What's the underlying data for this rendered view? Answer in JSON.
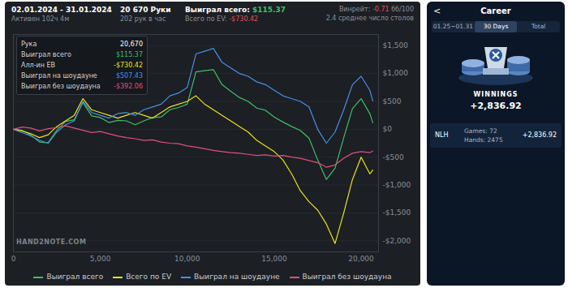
{
  "header": {
    "period": "02.01.2024 - 31.01.2024",
    "active": "Активен 102ч 4м",
    "hands": "20 670 Руки",
    "rate": "202 рук в час",
    "won_label": "Выиграл всего:",
    "won_value": "$115.37",
    "ev_label": "Всего по EV:",
    "ev_value": "-$730.42",
    "winrate_label": "Винрейт:",
    "winrate_value": "-0.71",
    "winrate_unit": "бб/100",
    "tables": "2.4 среднее число столов"
  },
  "tooltip": {
    "rows": [
      [
        "Рука",
        "20,670"
      ],
      [
        "Выиграл всего",
        "$115.37"
      ],
      [
        "Алл-ин EВ",
        "-$730.42"
      ],
      [
        "Выиграл на шоудауне",
        "$507.43"
      ],
      [
        "Выиграл без шоудауна",
        "-$392.06"
      ]
    ]
  },
  "watermark": "HAND2NOTE.COM",
  "chart_data": {
    "type": "line",
    "x": [
      0,
      500,
      1000,
      1500,
      2000,
      2500,
      3000,
      3500,
      4000,
      4500,
      5000,
      5500,
      6000,
      6500,
      7000,
      7500,
      8000,
      8500,
      9000,
      9500,
      10000,
      10500,
      11000,
      11500,
      12000,
      12500,
      13000,
      13500,
      14000,
      14500,
      15000,
      15500,
      16000,
      16500,
      17000,
      17500,
      18000,
      18500,
      19000,
      19500,
      20000,
      20500,
      20670
    ],
    "series": [
      {
        "name": "Выиграл всего",
        "color": "#3fbf6a",
        "values": [
          0,
          -20,
          -100,
          -230,
          -240,
          -20,
          140,
          170,
          480,
          240,
          210,
          120,
          160,
          150,
          80,
          150,
          210,
          220,
          350,
          390,
          450,
          1030,
          1050,
          1070,
          800,
          680,
          570,
          500,
          380,
          340,
          220,
          130,
          50,
          -20,
          -160,
          -550,
          -900,
          -700,
          -150,
          370,
          550,
          280,
          115.37
        ]
      },
      {
        "name": "Всего по EV",
        "color": "#ece21a",
        "values": [
          0,
          -30,
          -80,
          -150,
          -100,
          50,
          150,
          250,
          550,
          350,
          300,
          250,
          200,
          250,
          300,
          250,
          200,
          300,
          400,
          450,
          500,
          600,
          450,
          350,
          250,
          150,
          50,
          -50,
          -200,
          -300,
          -400,
          -550,
          -800,
          -1100,
          -1300,
          -1450,
          -1700,
          -2050,
          -1500,
          -900,
          -500,
          -800,
          -730.42
        ]
      },
      {
        "name": "Выиграл на шоудауне",
        "color": "#4a8fe6",
        "values": [
          0,
          -60,
          -120,
          -200,
          -250,
          -50,
          80,
          150,
          500,
          300,
          250,
          200,
          280,
          300,
          250,
          350,
          400,
          450,
          600,
          650,
          750,
          1350,
          1400,
          1450,
          1200,
          1100,
          1000,
          950,
          850,
          800,
          700,
          600,
          550,
          500,
          400,
          0,
          -250,
          -50,
          350,
          800,
          950,
          700,
          507.43
        ]
      },
      {
        "name": "Выиграл без шоудауна",
        "color": "#e0507a",
        "values": [
          0,
          40,
          20,
          -30,
          10,
          30,
          60,
          20,
          -20,
          -60,
          -40,
          -80,
          -120,
          -150,
          -170,
          -200,
          -190,
          -230,
          -250,
          -260,
          -300,
          -320,
          -350,
          -380,
          -400,
          -420,
          -430,
          -450,
          -470,
          -460,
          -480,
          -470,
          -500,
          -520,
          -560,
          -600,
          -680,
          -640,
          -520,
          -430,
          -400,
          -420,
          -392.06
        ]
      }
    ],
    "xlim": [
      0,
      21000
    ],
    "ylim": [
      -2200,
      1700
    ],
    "xticks": [
      0,
      {
        "value": 5000,
        "label": "5,000"
      },
      {
        "value": 10000,
        "label": "10,000"
      },
      {
        "value": 15000,
        "label": "15,000"
      },
      {
        "value": 20000,
        "label": "20,000"
      }
    ],
    "yticks": [
      {
        "value": -2000,
        "label": "-$2,000"
      },
      {
        "value": -1500,
        "label": "-$1,500"
      },
      {
        "value": -1000,
        "label": "-$1,000"
      },
      {
        "value": -500,
        "label": "-$500"
      },
      {
        "value": 0,
        "label": "$0"
      },
      {
        "value": 500,
        "label": "$500"
      },
      {
        "value": 1000,
        "label": "$1,000"
      },
      {
        "value": 1500,
        "label": "$1,500"
      }
    ],
    "grid": true,
    "legend": "bottom"
  },
  "side_panel": {
    "back": "<",
    "title": "Career",
    "tabs": [
      {
        "text": "01.25~01.31",
        "active": false
      },
      {
        "text": "30 Days",
        "active": true
      },
      {
        "text": "Total",
        "active": false
      }
    ],
    "heading": "WINNINGS",
    "total": "+2,836.92",
    "rows": [
      {
        "game": "NLH",
        "games": "Games: 72",
        "hands": "Hands: 2475",
        "winnings": "+2,836.92"
      }
    ]
  }
}
